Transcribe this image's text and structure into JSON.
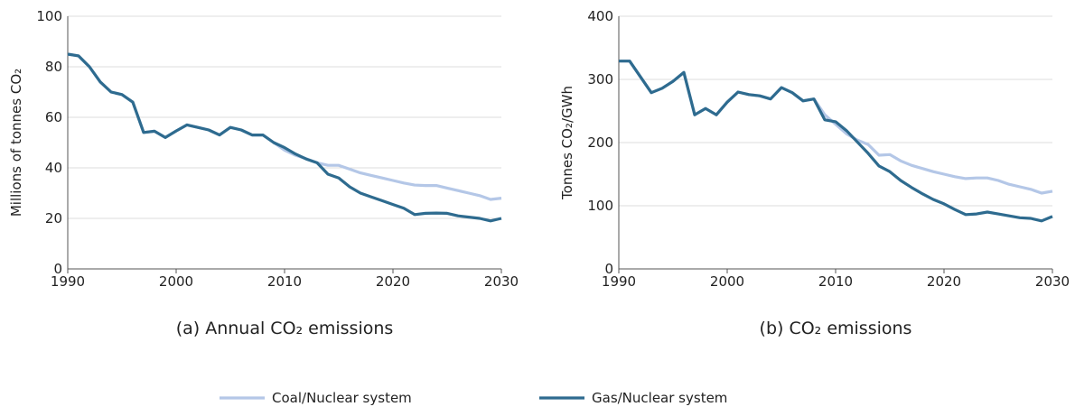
{
  "chart_data": [
    {
      "type": "line",
      "title": "(a) Annual CO₂ emissions",
      "y_label": "Millions of tonnes CO₂",
      "x": [
        1990,
        1991,
        1992,
        1993,
        1994,
        1995,
        1996,
        1997,
        1998,
        1999,
        2000,
        2001,
        2002,
        2003,
        2004,
        2005,
        2006,
        2007,
        2008,
        2009,
        2010,
        2011,
        2012,
        2013,
        2014,
        2015,
        2016,
        2017,
        2018,
        2019,
        2020,
        2021,
        2022,
        2023,
        2024,
        2025,
        2026,
        2027,
        2028,
        2029,
        2030
      ],
      "xlim": [
        1990,
        2030
      ],
      "xticks": [
        1990,
        2000,
        2010,
        2020,
        2030
      ],
      "ylim": [
        0,
        100
      ],
      "yticks": [
        0,
        20,
        40,
        60,
        80,
        100
      ],
      "grid": true,
      "series": [
        {
          "name": "Coal/Nuclear system",
          "color": "#b4c7e7",
          "values": [
            85,
            84.3,
            80,
            74,
            70,
            69,
            66,
            54,
            54.5,
            52,
            54.6,
            57,
            56,
            55,
            53,
            56,
            55,
            53,
            53,
            50,
            47,
            45,
            43.6,
            42,
            41,
            41,
            39.5,
            38,
            37,
            36,
            35,
            34,
            33.2,
            33,
            33,
            32,
            31,
            30,
            29,
            27.5,
            28
          ]
        },
        {
          "name": "Gas/Nuclear system",
          "color": "#2e6b8f",
          "values": [
            85,
            84.3,
            80,
            74,
            70,
            69,
            66,
            54,
            54.5,
            52,
            54.6,
            57,
            56,
            55,
            53,
            56,
            55,
            53,
            53,
            50,
            48,
            45.5,
            43.5,
            42,
            37.5,
            36,
            32.5,
            30,
            28.5,
            27,
            25.5,
            24,
            21.5,
            22,
            22.1,
            22,
            21,
            20.5,
            20,
            19,
            20
          ]
        }
      ]
    },
    {
      "type": "line",
      "title": "(b) CO₂ emissions",
      "y_label": "Tonnes CO₂/GWh",
      "x": [
        1990,
        1991,
        1992,
        1993,
        1994,
        1995,
        1996,
        1997,
        1998,
        1999,
        2000,
        2001,
        2002,
        2003,
        2004,
        2005,
        2006,
        2007,
        2008,
        2009,
        2010,
        2011,
        2012,
        2013,
        2014,
        2015,
        2016,
        2017,
        2018,
        2019,
        2020,
        2021,
        2022,
        2023,
        2024,
        2025,
        2026,
        2027,
        2028,
        2029,
        2030
      ],
      "xlim": [
        1990,
        2030
      ],
      "xticks": [
        1990,
        2000,
        2010,
        2020,
        2030
      ],
      "ylim": [
        0,
        400
      ],
      "yticks": [
        0,
        100,
        200,
        300,
        400
      ],
      "grid": true,
      "series": [
        {
          "color": "#b4c7e7",
          "values": [
            329,
            329,
            304,
            279,
            286,
            297,
            311,
            244,
            254,
            244,
            264,
            280,
            276,
            274,
            269,
            287,
            279,
            266,
            269,
            244,
            229,
            214,
            204,
            197,
            180,
            181,
            171,
            164,
            159,
            154,
            150,
            146,
            143,
            144,
            144,
            140,
            134,
            130,
            126,
            120,
            123
          ]
        },
        {
          "color": "#2e6b8f",
          "values": [
            329,
            329,
            304,
            279,
            286,
            297,
            311,
            244,
            254,
            244,
            264,
            280,
            276,
            274,
            269,
            287,
            279,
            266,
            269,
            236,
            233,
            219,
            201,
            183,
            163,
            154,
            140,
            129,
            119,
            110,
            103,
            94,
            86,
            87,
            90,
            87,
            84,
            81,
            80,
            76,
            83
          ]
        }
      ]
    }
  ]
}
